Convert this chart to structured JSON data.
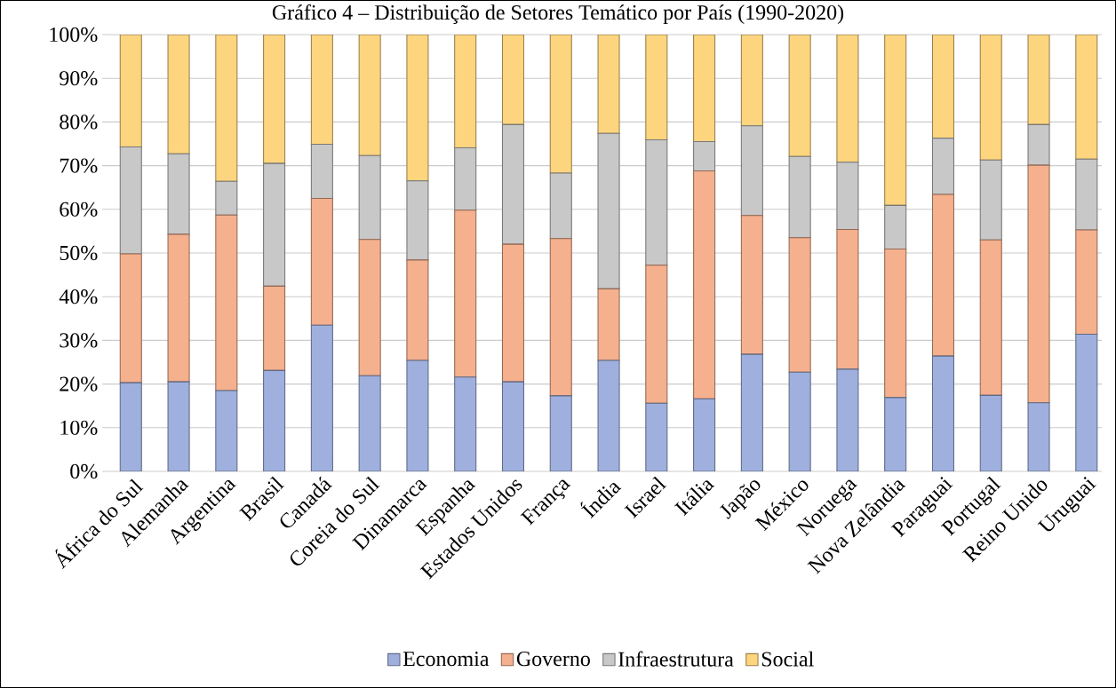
{
  "chart_data": {
    "type": "bar",
    "stacked": true,
    "title": "Gráfico 4 – Distribuição de Setores Temático por País (1990-2020)",
    "categories": [
      "África do Sul",
      "Alemanha",
      "Argentina",
      "Brasil",
      "Canadá",
      "Coreia do Sul",
      "Dinamarca",
      "Espanha",
      "Estados Unidos",
      "França",
      "Índia",
      "Israel",
      "Itália",
      "Japão",
      "México",
      "Noruega",
      "Nova Zelândia",
      "Paraguai",
      "Portugal",
      "Reino Unido",
      "Uruguai"
    ],
    "series": [
      {
        "name": "Economia",
        "color": "#9fb0de",
        "values": [
          20.3,
          20.5,
          18.5,
          23.1,
          33.5,
          21.9,
          25.4,
          21.6,
          20.5,
          17.3,
          25.4,
          15.6,
          16.6,
          26.8,
          22.7,
          23.4,
          16.9,
          26.4,
          17.4,
          15.7,
          31.4
        ]
      },
      {
        "name": "Governo",
        "color": "#f5b08e",
        "values": [
          29.5,
          33.8,
          40.2,
          19.3,
          29.0,
          31.2,
          23.0,
          38.2,
          31.5,
          36.0,
          16.4,
          31.6,
          52.2,
          31.8,
          30.8,
          32.0,
          34.0,
          37.0,
          35.6,
          54.4,
          23.9
        ]
      },
      {
        "name": "Infraestrutura",
        "color": "#c8c8c8",
        "values": [
          24.5,
          18.4,
          7.7,
          28.1,
          12.4,
          19.2,
          18.1,
          14.3,
          27.4,
          15.0,
          35.6,
          28.7,
          6.7,
          20.5,
          18.6,
          15.4,
          10.0,
          12.9,
          18.3,
          9.3,
          16.2
        ]
      },
      {
        "name": "Social",
        "color": "#fed57f",
        "values": [
          25.7,
          27.3,
          33.6,
          29.5,
          25.1,
          27.7,
          33.5,
          25.9,
          20.6,
          31.7,
          22.6,
          24.1,
          24.5,
          20.9,
          27.9,
          29.2,
          39.1,
          23.7,
          28.7,
          20.6,
          28.5
        ]
      }
    ],
    "ylim": [
      0,
      100
    ],
    "yticks": [
      {
        "value": 0,
        "label": "0%"
      },
      {
        "value": 10,
        "label": "10%"
      },
      {
        "value": 20,
        "label": "20%"
      },
      {
        "value": 30,
        "label": "30%"
      },
      {
        "value": 40,
        "label": "40%"
      },
      {
        "value": 50,
        "label": "50%"
      },
      {
        "value": 60,
        "label": "60%"
      },
      {
        "value": 70,
        "label": "70%"
      },
      {
        "value": 80,
        "label": "80%"
      },
      {
        "value": 90,
        "label": "90%"
      },
      {
        "value": 100,
        "label": "100%"
      }
    ],
    "grid": "y",
    "legend": "bottom"
  }
}
